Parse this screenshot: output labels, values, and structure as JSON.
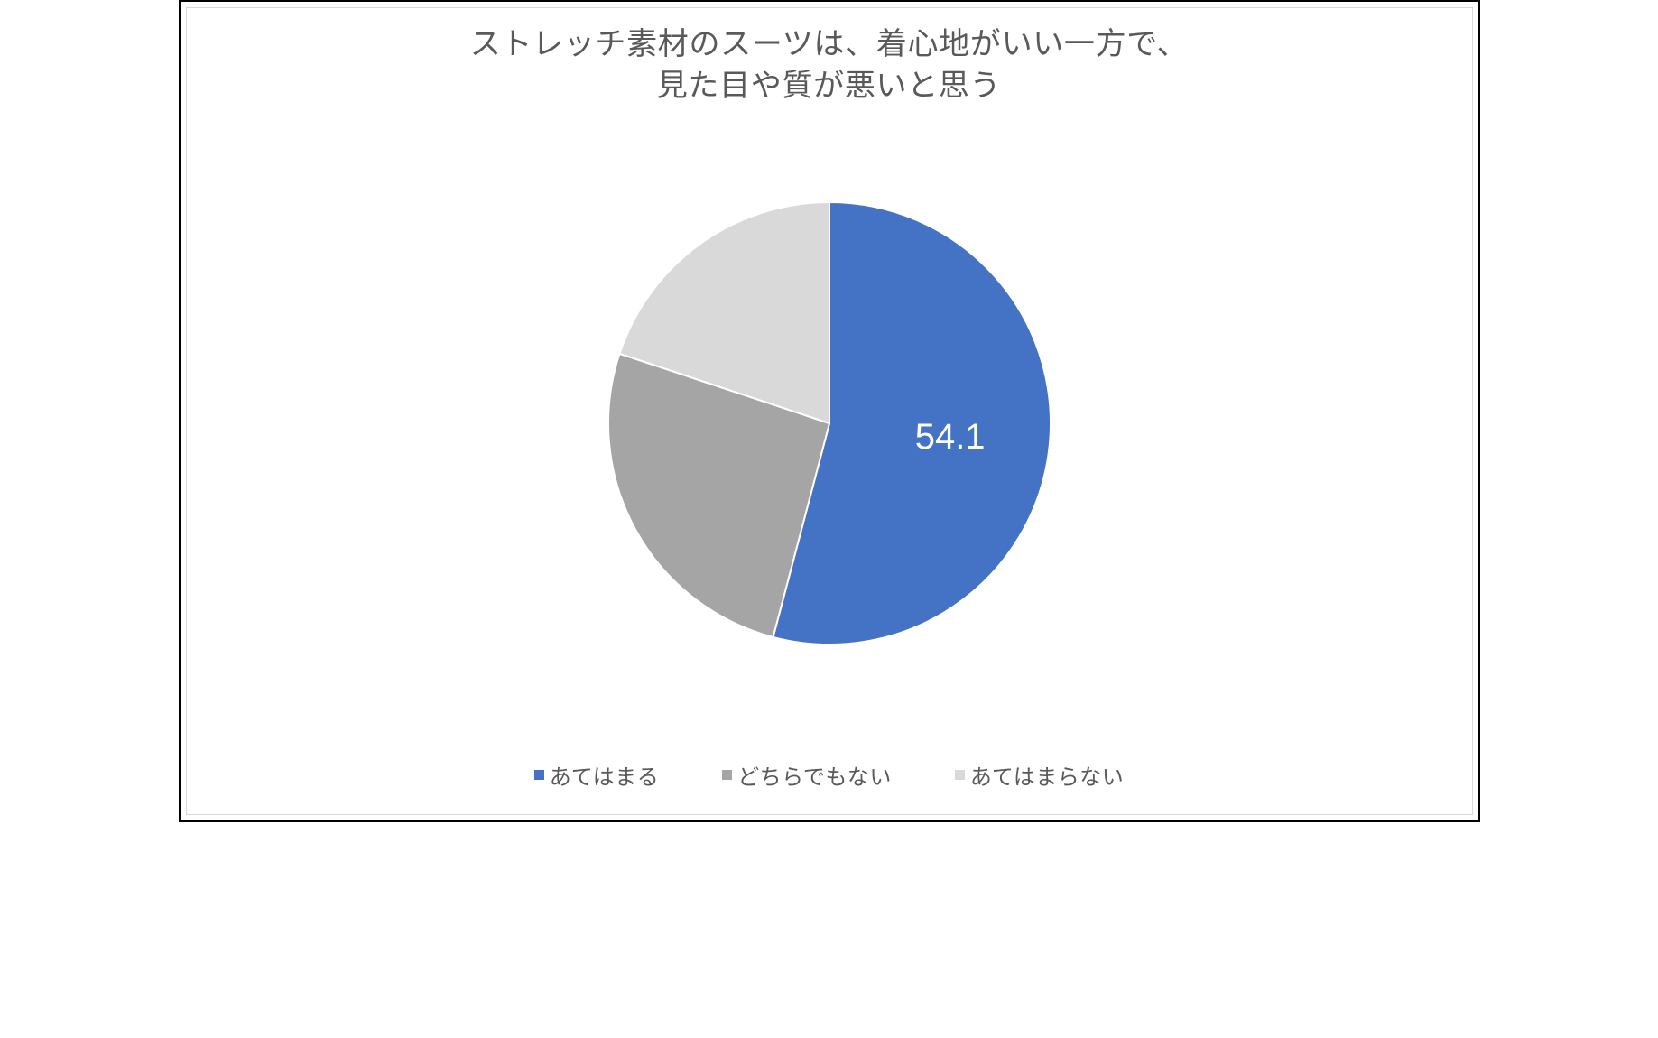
{
  "chart": {
    "type": "pie",
    "title_line1": "ストレッチ素材のスーツは、着心地がいい一方で、",
    "title_line2": "見た目や質が悪いと思う",
    "title_fontsize": 34,
    "title_color": "#595959",
    "background_color": "#ffffff",
    "border_color": "#d9d9d9",
    "outer_border_color": "#000000",
    "pie_radius": 245,
    "slice_stroke": "#ffffff",
    "slice_stroke_width": 2,
    "data_label_value": "54.1",
    "data_label_fontsize": 40,
    "data_label_color": "#ffffff",
    "legend_fontsize": 24,
    "legend_color": "#595959",
    "series": [
      {
        "label": "あてはまる",
        "value": 54.1,
        "color": "#4472c4"
      },
      {
        "label": "どちらでもない",
        "value": 26.0,
        "color": "#a5a5a5"
      },
      {
        "label": "あてはまらない",
        "value": 19.9,
        "color": "#d9d9d9"
      }
    ]
  }
}
